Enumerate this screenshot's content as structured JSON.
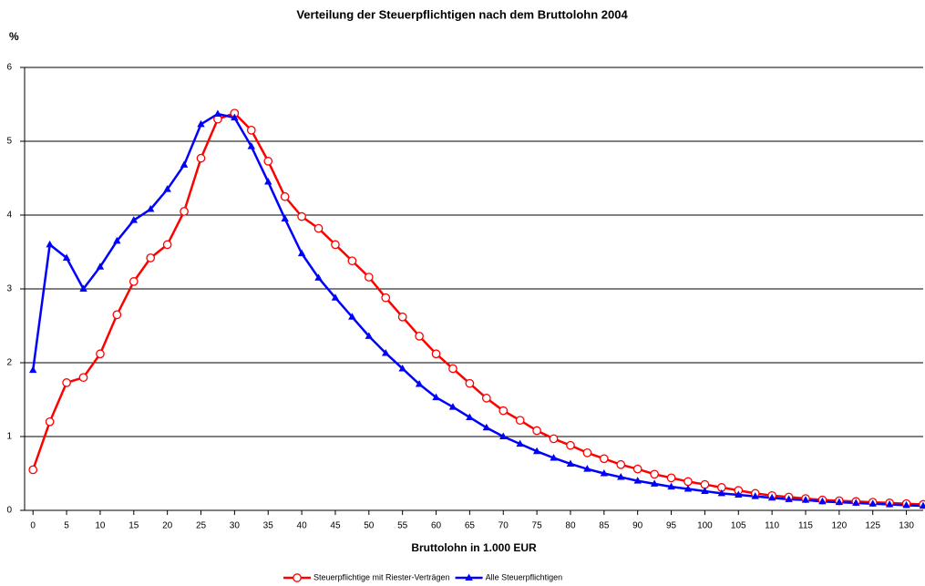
{
  "chart_data": {
    "type": "line",
    "title": "Verteilung der Steuerpflichtigen nach dem Bruttolohn 2004",
    "y_label": "%",
    "x_label": "Bruttolohn in 1.000 EUR",
    "x": [
      0,
      2.5,
      5,
      7.5,
      10,
      12.5,
      15,
      17.5,
      20,
      22.5,
      25,
      27.5,
      30,
      32.5,
      35,
      37.5,
      40,
      42.5,
      45,
      47.5,
      50,
      52.5,
      55,
      57.5,
      60,
      62.5,
      65,
      67.5,
      70,
      72.5,
      75,
      77.5,
      80,
      82.5,
      85,
      87.5,
      90,
      92.5,
      95,
      97.5,
      100,
      102.5,
      105,
      107.5,
      110,
      112.5,
      115,
      117.5,
      120,
      122.5,
      125,
      127.5,
      130,
      132.5
    ],
    "series": [
      {
        "name": "Steuerpflichtige mit Riester-Verträgen",
        "color": "#ff0000",
        "marker": "circle",
        "values": [
          0.55,
          1.2,
          1.73,
          1.8,
          2.12,
          2.65,
          3.1,
          3.42,
          3.6,
          4.05,
          4.77,
          5.3,
          5.38,
          5.15,
          4.73,
          4.25,
          3.98,
          3.82,
          3.6,
          3.38,
          3.16,
          2.88,
          2.62,
          2.36,
          2.12,
          1.92,
          1.72,
          1.52,
          1.35,
          1.22,
          1.08,
          0.97,
          0.88,
          0.78,
          0.7,
          0.62,
          0.56,
          0.49,
          0.44,
          0.39,
          0.35,
          0.31,
          0.27,
          0.23,
          0.2,
          0.18,
          0.16,
          0.14,
          0.13,
          0.12,
          0.11,
          0.1,
          0.09,
          0.08
        ]
      },
      {
        "name": "Alle Steuerpflichtigen",
        "color": "#0000ff",
        "marker": "triangle",
        "values": [
          1.9,
          3.6,
          3.42,
          3.0,
          3.3,
          3.65,
          3.93,
          4.08,
          4.35,
          4.68,
          5.23,
          5.37,
          5.32,
          4.93,
          4.45,
          3.95,
          3.48,
          3.15,
          2.88,
          2.62,
          2.36,
          2.13,
          1.92,
          1.71,
          1.53,
          1.4,
          1.26,
          1.12,
          1.0,
          0.9,
          0.8,
          0.71,
          0.63,
          0.56,
          0.5,
          0.45,
          0.4,
          0.36,
          0.32,
          0.29,
          0.26,
          0.23,
          0.21,
          0.19,
          0.17,
          0.15,
          0.14,
          0.12,
          0.11,
          0.1,
          0.09,
          0.08,
          0.07,
          0.06
        ]
      }
    ],
    "xlim": [
      -1.25,
      132.5
    ],
    "xticks": [
      0,
      5,
      10,
      15,
      20,
      25,
      30,
      35,
      40,
      45,
      50,
      55,
      60,
      65,
      70,
      75,
      80,
      85,
      90,
      95,
      100,
      105,
      110,
      115,
      120,
      125,
      130
    ],
    "ylim": [
      0,
      6
    ],
    "yticks": [
      0,
      1,
      2,
      3,
      4,
      5,
      6
    ],
    "grid": true,
    "legend": "bottom"
  }
}
